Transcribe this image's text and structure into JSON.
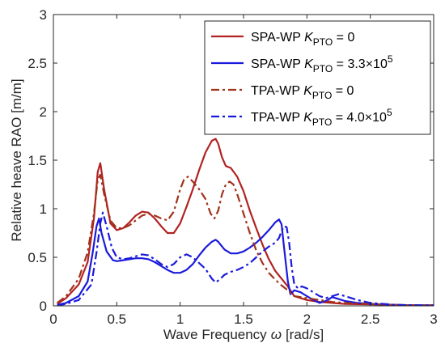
{
  "chart_data": {
    "type": "line",
    "title": "",
    "xlabel": "Wave Frequency",
    "xlabel_symbol": "ω",
    "xlabel_unit": "[rad/s]",
    "ylabel": "Relative heave RAO [m/m]",
    "xlim": [
      0,
      3
    ],
    "ylim": [
      0,
      3
    ],
    "xticks": [
      0,
      0.5,
      1,
      1.5,
      2,
      2.5,
      3
    ],
    "xtick_labels": [
      "0",
      "0.5",
      "1",
      "1.5",
      "2",
      "2.5",
      "3"
    ],
    "yticks": [
      0,
      0.5,
      1,
      1.5,
      2,
      2.5,
      3
    ],
    "ytick_labels": [
      "0",
      "0.5",
      "1",
      "1.5",
      "2",
      "2.5",
      "3"
    ],
    "grid": false,
    "legend_position": "top-right",
    "series": [
      {
        "name": "SPA-WP",
        "k_symbol": "K",
        "k_sub": "PTO",
        "k_value": "= 0",
        "k_sup": "",
        "color": "#b22222",
        "style": "solid",
        "x": [
          0.03,
          0.1,
          0.2,
          0.27,
          0.32,
          0.35,
          0.37,
          0.4,
          0.45,
          0.5,
          0.55,
          0.6,
          0.65,
          0.7,
          0.75,
          0.8,
          0.85,
          0.9,
          0.95,
          1.0,
          1.05,
          1.1,
          1.15,
          1.2,
          1.25,
          1.28,
          1.3,
          1.33,
          1.36,
          1.4,
          1.45,
          1.5,
          1.55,
          1.6,
          1.65,
          1.7,
          1.75,
          1.8,
          1.85,
          1.88,
          1.9,
          1.95,
          2.0,
          2.05,
          2.1,
          2.2,
          2.3,
          2.5,
          2.7,
          2.9,
          3.0
        ],
        "y": [
          0.02,
          0.08,
          0.22,
          0.45,
          0.9,
          1.38,
          1.47,
          1.2,
          0.85,
          0.78,
          0.8,
          0.86,
          0.93,
          0.97,
          0.96,
          0.9,
          0.82,
          0.75,
          0.75,
          0.85,
          1.02,
          1.2,
          1.4,
          1.58,
          1.7,
          1.72,
          1.67,
          1.53,
          1.44,
          1.42,
          1.33,
          1.18,
          0.98,
          0.8,
          0.63,
          0.48,
          0.36,
          0.28,
          0.2,
          0.14,
          0.1,
          0.08,
          0.06,
          0.05,
          0.04,
          0.03,
          0.02,
          0.015,
          0.01,
          0.005,
          0.005
        ]
      },
      {
        "name": "SPA-WP",
        "k_symbol": "K",
        "k_sub": "PTO",
        "k_value": "= 3.3×10",
        "k_sup": "5",
        "color": "#1a1adc",
        "style": "solid",
        "x": [
          0.03,
          0.1,
          0.2,
          0.27,
          0.31,
          0.34,
          0.36,
          0.38,
          0.42,
          0.47,
          0.5,
          0.55,
          0.6,
          0.65,
          0.7,
          0.75,
          0.8,
          0.85,
          0.9,
          0.95,
          1.0,
          1.05,
          1.1,
          1.15,
          1.2,
          1.25,
          1.28,
          1.3,
          1.35,
          1.4,
          1.45,
          1.5,
          1.55,
          1.6,
          1.65,
          1.7,
          1.75,
          1.78,
          1.8,
          1.82,
          1.85,
          1.87,
          1.9,
          1.95,
          2.0,
          2.05,
          2.1,
          2.15,
          2.2,
          2.25,
          2.3,
          2.4,
          2.5,
          2.7,
          2.9,
          3.0
        ],
        "y": [
          0.01,
          0.03,
          0.1,
          0.25,
          0.55,
          0.82,
          0.9,
          0.75,
          0.56,
          0.47,
          0.46,
          0.47,
          0.48,
          0.49,
          0.49,
          0.48,
          0.45,
          0.41,
          0.37,
          0.34,
          0.34,
          0.37,
          0.43,
          0.52,
          0.6,
          0.66,
          0.68,
          0.66,
          0.58,
          0.54,
          0.54,
          0.56,
          0.6,
          0.65,
          0.71,
          0.78,
          0.86,
          0.89,
          0.84,
          0.6,
          0.25,
          0.12,
          0.16,
          0.14,
          0.1,
          0.06,
          0.03,
          0.05,
          0.09,
          0.07,
          0.05,
          0.03,
          0.02,
          0.01,
          0.005,
          0.005
        ]
      },
      {
        "name": "TPA-WP",
        "k_symbol": "K",
        "k_sub": "PTO",
        "k_value": "= 0",
        "k_sup": "",
        "color": "#a0321a",
        "style": "dashdot",
        "x": [
          0.03,
          0.1,
          0.2,
          0.27,
          0.32,
          0.35,
          0.37,
          0.4,
          0.45,
          0.5,
          0.55,
          0.6,
          0.65,
          0.7,
          0.75,
          0.8,
          0.85,
          0.9,
          0.95,
          1.0,
          1.03,
          1.06,
          1.1,
          1.15,
          1.2,
          1.24,
          1.27,
          1.3,
          1.33,
          1.36,
          1.39,
          1.42,
          1.45,
          1.5,
          1.55,
          1.6,
          1.65,
          1.7,
          1.75,
          1.8,
          1.85,
          1.88,
          1.9,
          1.95,
          2.0,
          2.1,
          2.2,
          2.3,
          2.5,
          2.7,
          2.9,
          3.0
        ],
        "y": [
          0.03,
          0.1,
          0.28,
          0.55,
          0.95,
          1.3,
          1.35,
          1.15,
          0.88,
          0.8,
          0.8,
          0.83,
          0.88,
          0.93,
          0.95,
          0.93,
          0.9,
          0.88,
          0.97,
          1.2,
          1.3,
          1.33,
          1.28,
          1.2,
          1.1,
          0.95,
          0.9,
          0.98,
          1.15,
          1.25,
          1.28,
          1.25,
          1.15,
          0.95,
          0.75,
          0.57,
          0.44,
          0.34,
          0.27,
          0.21,
          0.16,
          0.12,
          0.1,
          0.09,
          0.08,
          0.06,
          0.04,
          0.03,
          0.02,
          0.01,
          0.005,
          0.005
        ]
      },
      {
        "name": "TPA-WP",
        "k_symbol": "K",
        "k_sub": "PTO",
        "k_value": "= 4.0×10",
        "k_sup": "5",
        "color": "#1a1adc",
        "style": "dashdot",
        "x": [
          0.03,
          0.1,
          0.2,
          0.3,
          0.34,
          0.37,
          0.39,
          0.42,
          0.46,
          0.5,
          0.55,
          0.6,
          0.65,
          0.7,
          0.75,
          0.8,
          0.85,
          0.9,
          0.95,
          1.0,
          1.05,
          1.1,
          1.15,
          1.2,
          1.25,
          1.28,
          1.31,
          1.35,
          1.4,
          1.45,
          1.5,
          1.55,
          1.6,
          1.65,
          1.7,
          1.75,
          1.78,
          1.8,
          1.82,
          1.84,
          1.86,
          1.88,
          1.9,
          1.93,
          1.96,
          2.0,
          2.05,
          2.1,
          2.15,
          2.2,
          2.25,
          2.3,
          2.4,
          2.5,
          2.7,
          2.9,
          3.0
        ],
        "y": [
          0.005,
          0.02,
          0.06,
          0.22,
          0.55,
          0.85,
          0.96,
          0.82,
          0.6,
          0.5,
          0.48,
          0.49,
          0.51,
          0.53,
          0.52,
          0.48,
          0.43,
          0.4,
          0.43,
          0.5,
          0.53,
          0.5,
          0.44,
          0.38,
          0.28,
          0.24,
          0.27,
          0.32,
          0.35,
          0.37,
          0.4,
          0.44,
          0.5,
          0.56,
          0.61,
          0.65,
          0.7,
          0.77,
          0.82,
          0.81,
          0.65,
          0.4,
          0.22,
          0.18,
          0.2,
          0.18,
          0.14,
          0.1,
          0.08,
          0.1,
          0.12,
          0.1,
          0.06,
          0.03,
          0.01,
          0.005,
          0.005
        ]
      }
    ]
  }
}
